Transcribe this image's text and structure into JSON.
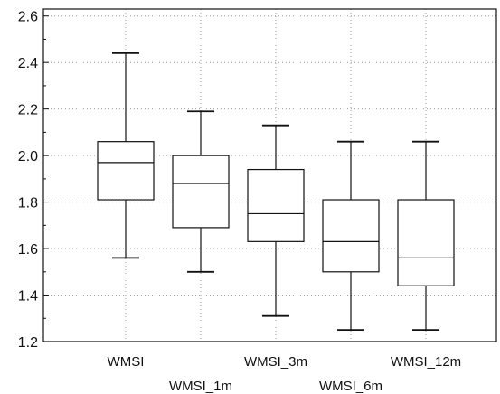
{
  "chart_data": {
    "type": "boxplot",
    "categories": [
      "WMSI",
      "WMSI_1m",
      "WMSI_3m",
      "WMSI_6m",
      "WMSI_12m"
    ],
    "series": [
      {
        "boxes": [
          {
            "category": "WMSI",
            "whisker_low": 1.56,
            "q1": 1.81,
            "median": 1.97,
            "q3": 2.06,
            "whisker_high": 2.44
          },
          {
            "category": "WMSI_1m",
            "whisker_low": 1.5,
            "q1": 1.69,
            "median": 1.88,
            "q3": 2.0,
            "whisker_high": 2.19
          },
          {
            "category": "WMSI_3m",
            "whisker_low": 1.31,
            "q1": 1.63,
            "median": 1.75,
            "q3": 1.94,
            "whisker_high": 2.13
          },
          {
            "category": "WMSI_6m",
            "whisker_low": 1.25,
            "q1": 1.5,
            "median": 1.63,
            "q3": 1.81,
            "whisker_high": 2.06
          },
          {
            "category": "WMSI_12m",
            "whisker_low": 1.25,
            "q1": 1.44,
            "median": 1.56,
            "q3": 1.81,
            "whisker_high": 2.06
          }
        ]
      }
    ],
    "y_ticks": [
      "1.2",
      "1.4",
      "1.6",
      "1.8",
      "2.0",
      "2.2",
      "2.4",
      "2.6"
    ],
    "y_tick_values": [
      1.2,
      1.4,
      1.6,
      1.8,
      2.0,
      2.2,
      2.4,
      2.6
    ],
    "ylim": [
      1.2,
      2.63
    ],
    "grid": true,
    "title": "",
    "xlabel": "",
    "ylabel": ""
  }
}
